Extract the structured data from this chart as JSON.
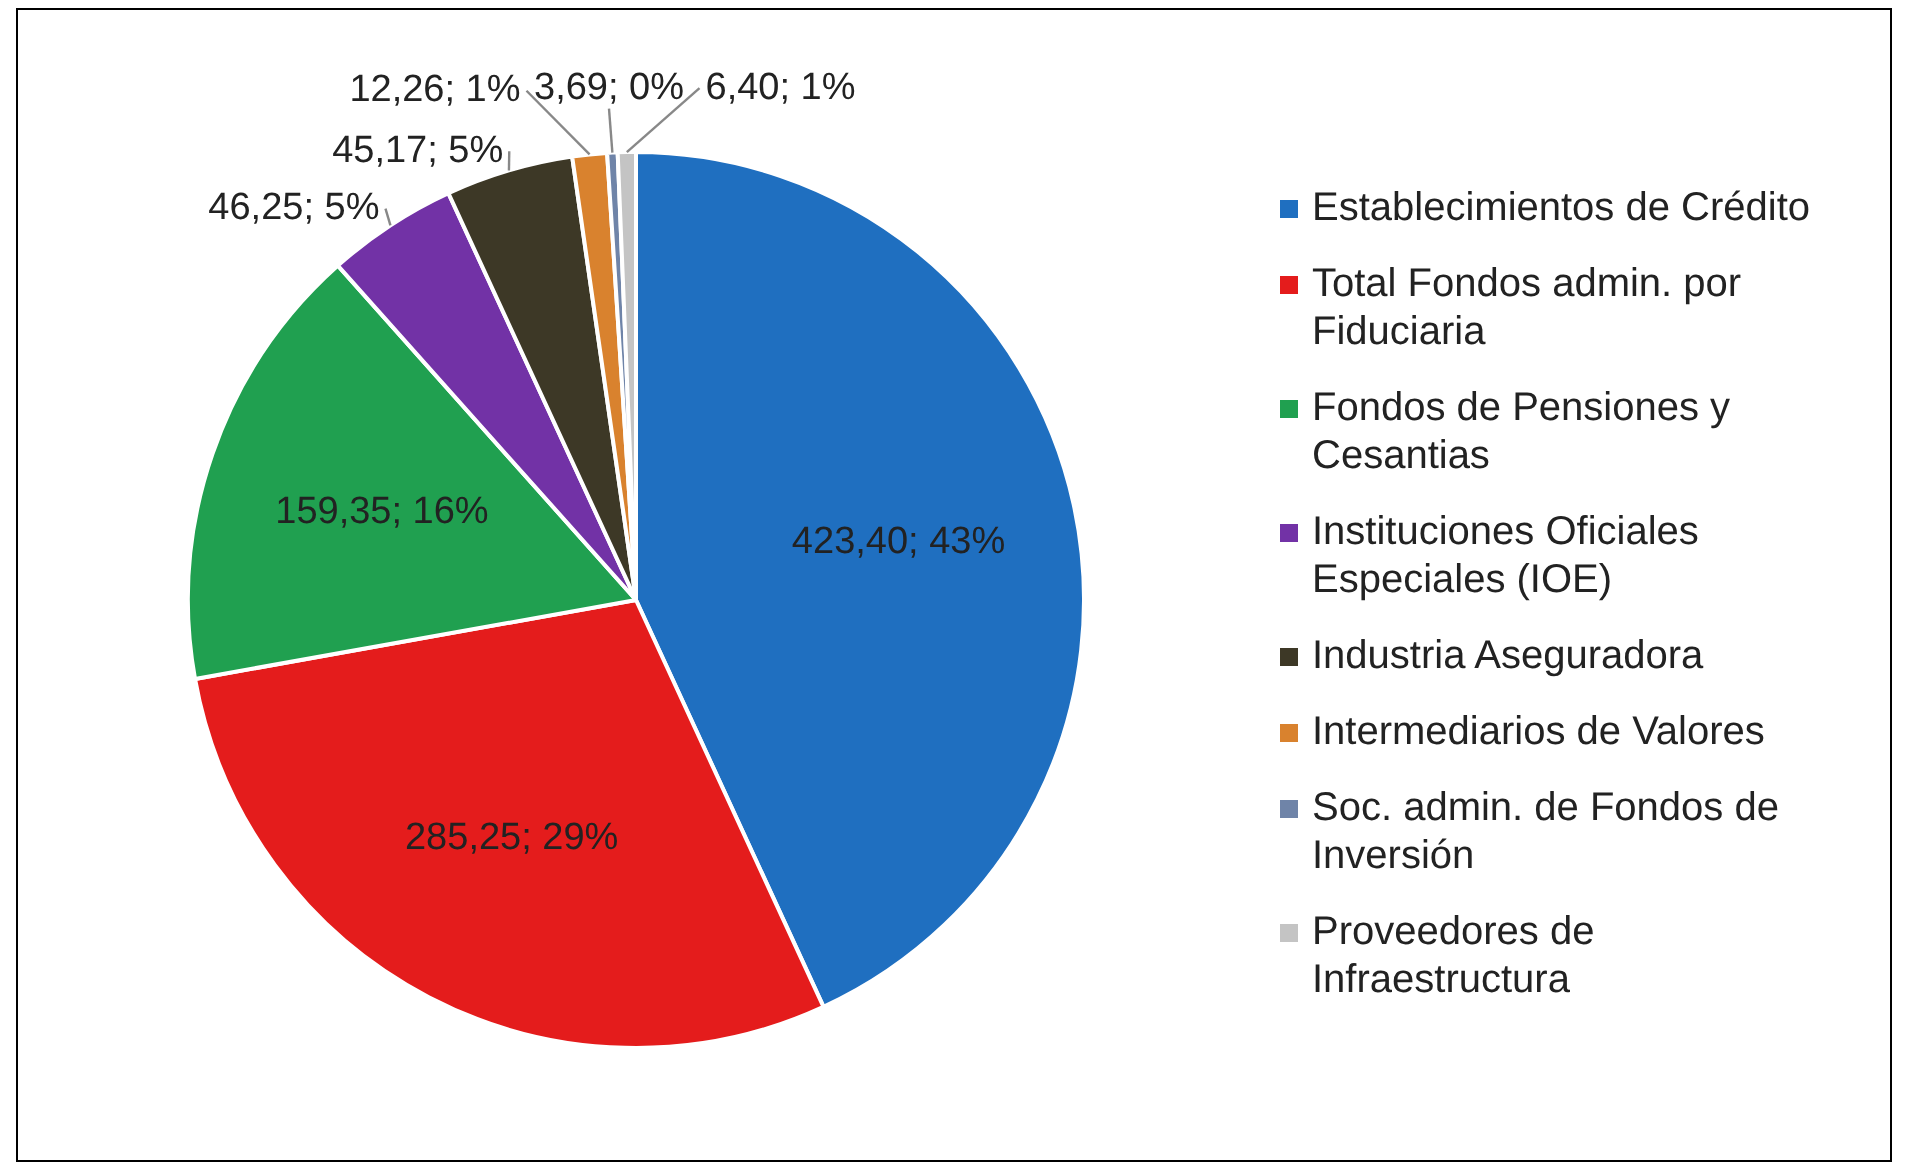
{
  "chart_data": {
    "type": "pie",
    "categories": [
      "Establecimientos de Crédito",
      "Total Fondos admin. por Fiduciaria",
      "Fondos de Pensiones y Cesantias",
      "Instituciones Oficiales Especiales (IOE)",
      "Industria Aseguradora",
      "Intermediarios de Valores",
      "Soc. admin. de Fondos de Inversión",
      "Proveedores de Infraestructura"
    ],
    "values": [
      423.4,
      285.25,
      159.35,
      46.25,
      45.17,
      12.26,
      3.69,
      6.4
    ],
    "colors": [
      "#1f6fc0",
      "#e41c1c",
      "#20a050",
      "#7232a6",
      "#3d3826",
      "#d9822e",
      "#6f84a8",
      "#c4c4c4"
    ],
    "value_labels": [
      "423,40; 43%",
      "285,25; 29%",
      "159,35; 16%",
      "46,25; 5%",
      "45,17; 5%",
      "12,26; 1%",
      "3,69; 0%",
      "6,40; 1%"
    ],
    "legend": "right"
  }
}
